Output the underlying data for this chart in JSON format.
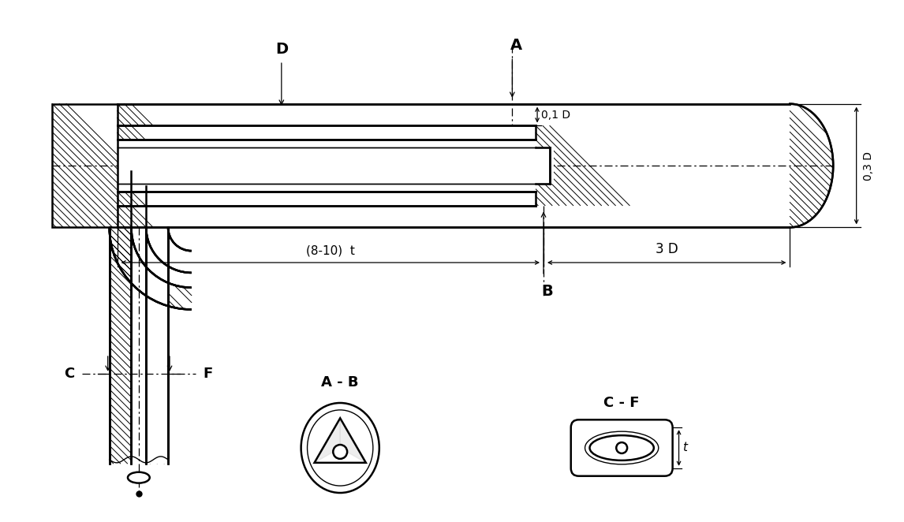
{
  "bg_color": "#ffffff",
  "line_color": "#000000",
  "labels": {
    "A": "A",
    "B": "B",
    "C": "C",
    "D": "D",
    "F": "F",
    "dim_01D": "0,1 D",
    "dim_03D": "0,3 D",
    "dim_3D": "3 D",
    "dim_810t": "(8-10)  t",
    "section_AB": "A - B",
    "section_CF": "C - F"
  },
  "figsize": [
    11.46,
    6.62
  ],
  "dpi": 100
}
